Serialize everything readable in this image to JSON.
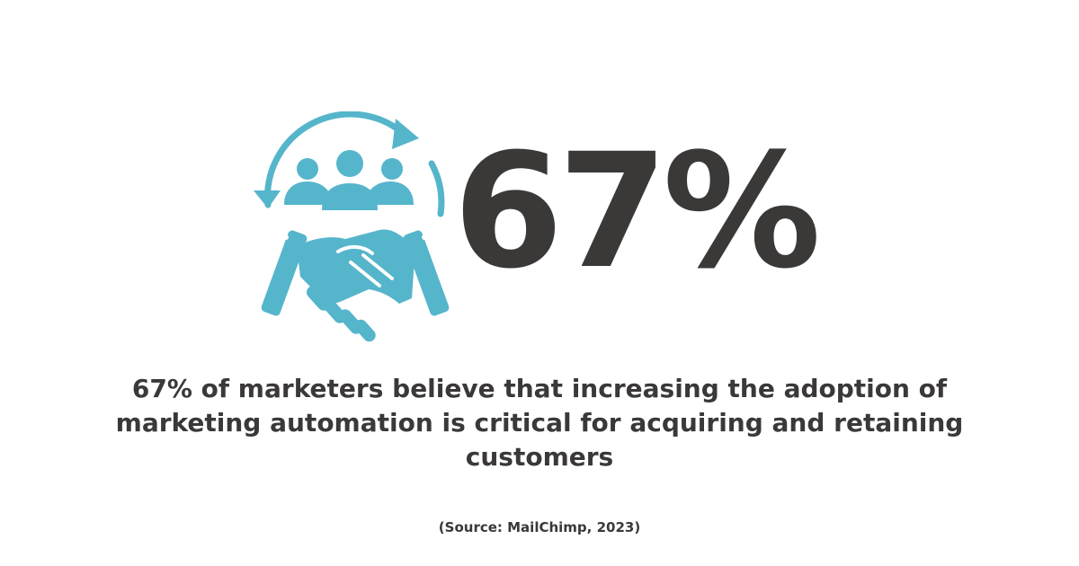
{
  "stat": {
    "value": "67%"
  },
  "description": "67% of marketers believe that increasing the adoption of marketing automation is critical for acquiring and retaining customers",
  "source": "(Source: MailChimp, 2023)",
  "icon": {
    "name": "handshake-customers-icon",
    "color": "#55b5cb"
  },
  "colors": {
    "text": "#3b3838",
    "accent": "#55b5cb",
    "background": "#ffffff"
  }
}
